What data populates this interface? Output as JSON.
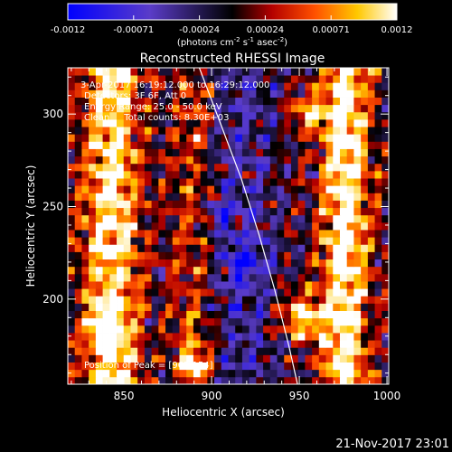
{
  "chart_data": {
    "type": "heatmap",
    "title": "Reconstructed RHESSI Image",
    "xlabel": "Heliocentric X (arcsec)",
    "ylabel": "Heliocentric Y (arcsec)",
    "xlim": [
      818,
      1001
    ],
    "ylim": [
      154,
      325
    ],
    "x_ticks": [
      850,
      900,
      950,
      1000
    ],
    "y_ticks": [
      200,
      250,
      300
    ],
    "colorbar": {
      "range": [
        -0.0012,
        0.0012
      ],
      "ticks": [
        "-0.0012",
        "-0.00071",
        "-0.00024",
        "0.00024",
        "0.00071",
        "0.0012"
      ],
      "unit_label": "(photons cm",
      "unit_parts": [
        "(photons cm",
        "-2",
        " s",
        "-1",
        " asec",
        "-2",
        ")"
      ]
    },
    "annotations": {
      "time_range": "3-Apr-2017 16:19:12.000 to 16:29:12.000",
      "detectors": "Detectors: 3F 6F, Att 0",
      "energy_range": "Energy Range: 25.0 - 50.0 keV",
      "clean_counts": "Clean     Total counts: 8.30E+03",
      "peak_position": "Position of Peak = [965,154]"
    },
    "limb_curve": [
      [
        893,
        325
      ],
      [
        905,
        295
      ],
      [
        917,
        265
      ],
      [
        927,
        235
      ],
      [
        936,
        205
      ],
      [
        944,
        175
      ],
      [
        949,
        154
      ]
    ],
    "grid": {
      "nx": 46,
      "ny": 43,
      "seed": 7,
      "features": [
        {
          "type": "vband",
          "x": 843,
          "width": 16,
          "amp": 0.85
        },
        {
          "type": "vband",
          "x": 890,
          "width": 14,
          "amp": 0.45
        },
        {
          "type": "vband",
          "x": 976,
          "width": 13,
          "amp": 0.95
        },
        {
          "type": "blob",
          "x": 952,
          "y": 190,
          "r": 12,
          "amp": 0.9
        },
        {
          "type": "blob",
          "x": 955,
          "y": 300,
          "r": 10,
          "amp": 0.7
        },
        {
          "type": "blob",
          "x": 890,
          "y": 165,
          "r": 8,
          "amp": 0.9
        },
        {
          "type": "blob",
          "x": 840,
          "y": 185,
          "r": 10,
          "amp": 0.7
        },
        {
          "type": "blob",
          "x": 905,
          "y": 245,
          "r": 6,
          "amp": -0.5
        },
        {
          "type": "blob",
          "x": 920,
          "y": 220,
          "r": 10,
          "amp": -0.55
        }
      ]
    }
  },
  "footer": {
    "timestamp": "21-Nov-2017 23:01"
  }
}
